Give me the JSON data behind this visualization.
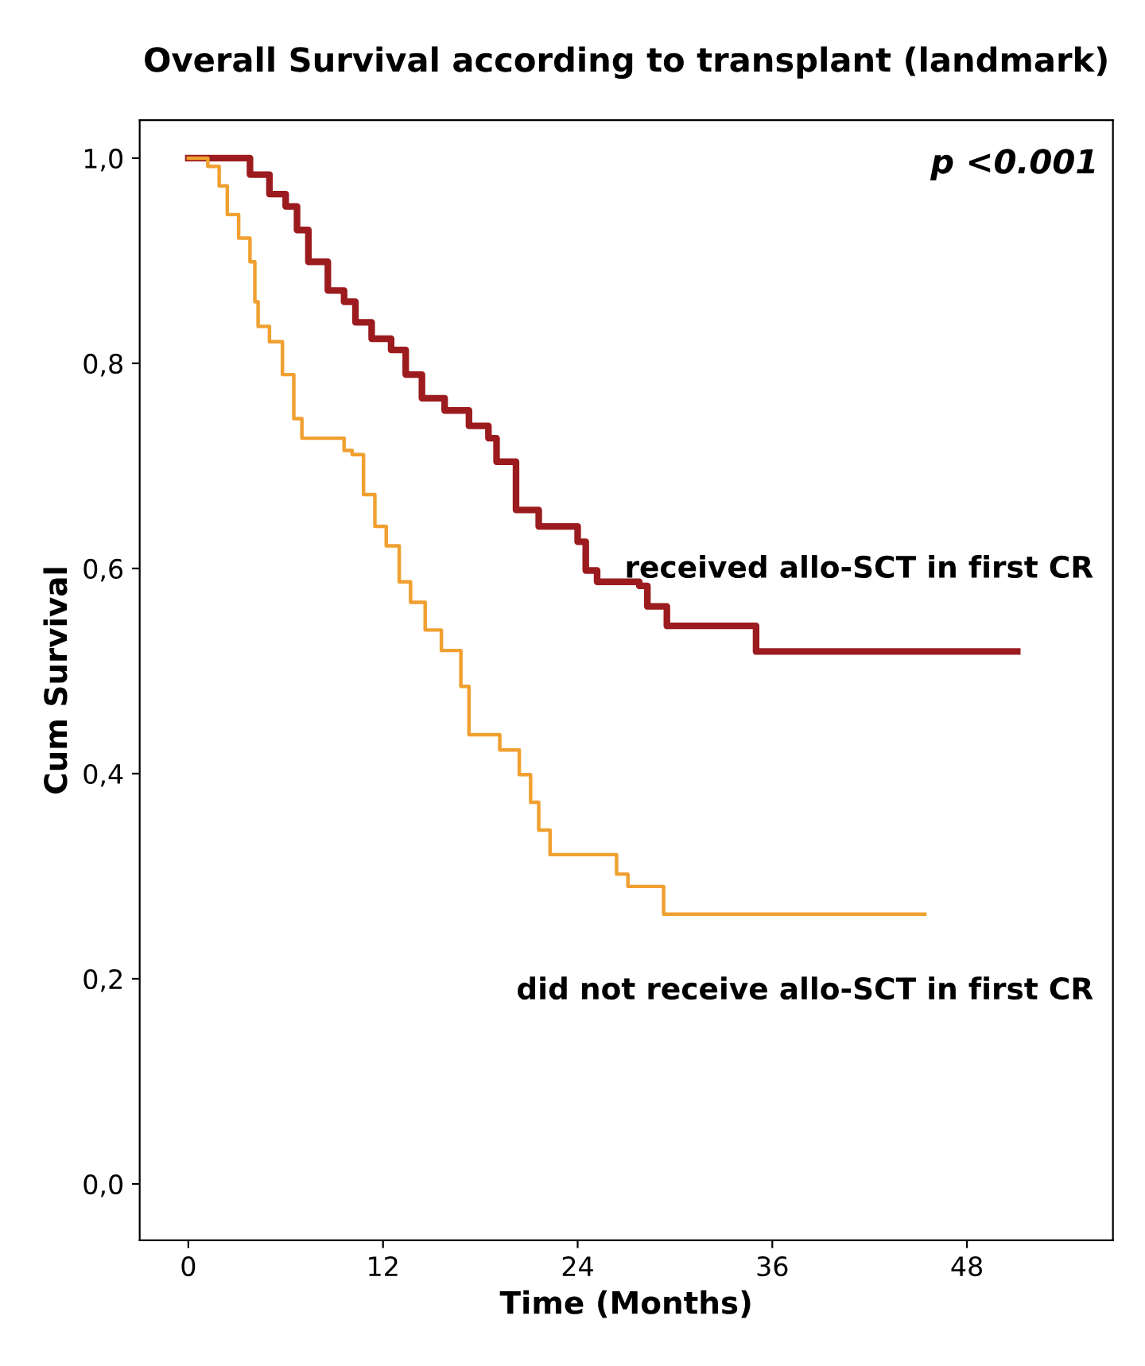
{
  "chart_data": {
    "type": "step",
    "title": "Overall Survival according to transplant (landmark)",
    "xlabel": "Time (Months)",
    "ylabel": "Cum Survival",
    "xlim": [
      -3,
      57
    ],
    "ylim": [
      -0.055,
      1.037
    ],
    "xticks": [
      0,
      12,
      24,
      36,
      48
    ],
    "yticks": [
      {
        "value": 0,
        "label": "0,0"
      },
      {
        "value": 0.2,
        "label": "0,2"
      },
      {
        "value": 0.4,
        "label": "0,4"
      },
      {
        "value": 0.6,
        "label": "0,6"
      },
      {
        "value": 0.8,
        "label": "0,8"
      },
      {
        "value": 1.0,
        "label": "1,0"
      }
    ],
    "grid": false,
    "legend": false,
    "annotations": [
      "p <0.001"
    ],
    "series": [
      {
        "name": "received allo-SCT in first CR",
        "color": "#9b1b1e",
        "x": [
          0,
          2.6,
          3.8,
          5.0,
          6.0,
          6.7,
          7.4,
          8.6,
          9.6,
          10.3,
          11.3,
          12.5,
          13.4,
          14.4,
          15.8,
          17.3,
          18.5,
          19.0,
          20.2,
          21.6,
          24.0,
          24.5,
          25.2,
          27.8,
          28.3,
          29.5,
          35.0,
          51.1
        ],
        "values": [
          1.0,
          1.0,
          0.984,
          0.965,
          0.953,
          0.93,
          0.899,
          0.871,
          0.86,
          0.84,
          0.824,
          0.813,
          0.789,
          0.766,
          0.754,
          0.739,
          0.727,
          0.704,
          0.657,
          0.641,
          0.626,
          0.598,
          0.587,
          0.583,
          0.563,
          0.544,
          0.519,
          0.519
        ]
      },
      {
        "name": "did not receive allo-SCT in first CR",
        "color": "#f0a030",
        "x": [
          0,
          1.2,
          1.9,
          2.4,
          3.1,
          3.8,
          4.1,
          4.3,
          5.0,
          5.8,
          6.5,
          7.0,
          9.6,
          10.1,
          10.8,
          11.5,
          12.2,
          13.0,
          13.7,
          14.6,
          15.6,
          16.8,
          17.3,
          19.2,
          20.4,
          21.1,
          21.6,
          22.3,
          26.4,
          27.1,
          29.3,
          45.4
        ],
        "values": [
          1.0,
          0.992,
          0.973,
          0.945,
          0.922,
          0.899,
          0.86,
          0.836,
          0.821,
          0.789,
          0.746,
          0.727,
          0.715,
          0.711,
          0.672,
          0.641,
          0.622,
          0.587,
          0.567,
          0.54,
          0.52,
          0.485,
          0.438,
          0.423,
          0.399,
          0.372,
          0.345,
          0.321,
          0.302,
          0.29,
          0.263,
          0.263
        ]
      }
    ]
  }
}
